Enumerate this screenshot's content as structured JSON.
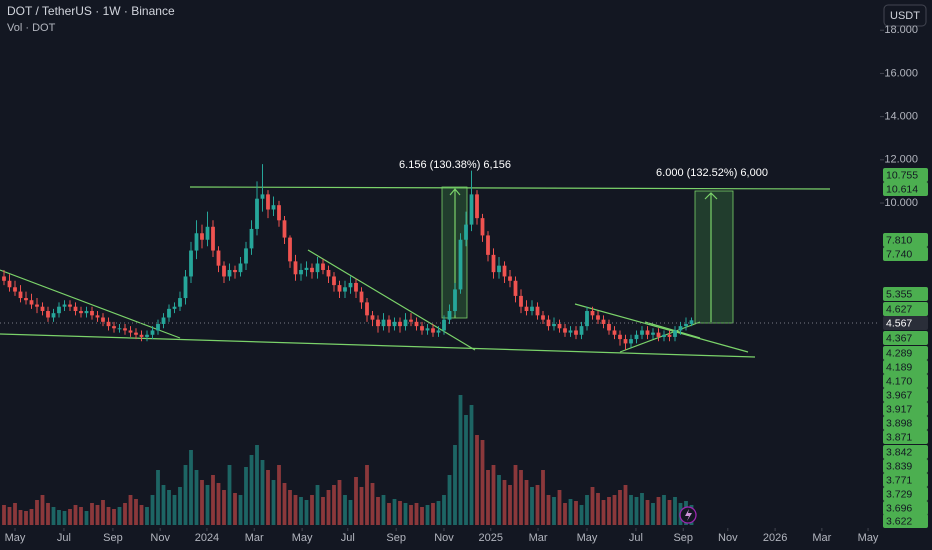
{
  "chart_data": {
    "type": "candlestick",
    "title": "DOT / TetherUS · 1W · Binance",
    "subtitle": "Vol · DOT",
    "currency_button": "USDT",
    "up_color": "#26a69a",
    "down_color": "#ef5350",
    "grid": false,
    "ylim": [
      -5,
      19.4
    ],
    "yticks": [
      {
        "value": 10,
        "label": "10.000"
      },
      {
        "value": 12,
        "label": "12.000"
      },
      {
        "value": 14,
        "label": "14.000"
      },
      {
        "value": 16,
        "label": "16.000"
      },
      {
        "value": 18,
        "label": "18.000"
      }
    ],
    "xticks": [
      {
        "value": 2.0,
        "label": "May"
      },
      {
        "value": 10.9,
        "label": "Jul"
      },
      {
        "value": 19.8,
        "label": "Sep"
      },
      {
        "value": 28.4,
        "label": "Nov"
      },
      {
        "value": 36.9,
        "label": "2024"
      },
      {
        "value": 45.5,
        "label": "Mar"
      },
      {
        "value": 54.2,
        "label": "May"
      },
      {
        "value": 62.5,
        "label": "Jul"
      },
      {
        "value": 71.3,
        "label": "Sep"
      },
      {
        "value": 80,
        "label": "Nov"
      },
      {
        "value": 88.5,
        "label": "2025"
      },
      {
        "value": 97.1,
        "label": "Mar"
      },
      {
        "value": 106,
        "label": "May"
      },
      {
        "value": 114.9,
        "label": "Jul"
      },
      {
        "value": 123.5,
        "label": "Sep"
      },
      {
        "value": 131.6,
        "label": "Nov"
      },
      {
        "value": 140.2,
        "label": "2026"
      },
      {
        "value": 148.7,
        "label": "Mar"
      },
      {
        "value": 157.1,
        "label": "May"
      }
    ],
    "open": [
      6.6,
      6.4,
      6.1,
      5.9,
      5.6,
      5.5,
      5.3,
      5.2,
      5.0,
      4.7,
      4.9,
      5.2,
      5.3,
      5.2,
      5.0,
      4.9,
      5.0,
      4.8,
      4.7,
      4.5,
      4.3,
      4.2,
      4.2,
      4.1,
      4.0,
      3.9,
      3.8,
      3.9,
      4.1,
      4.4,
      4.7,
      5.1,
      5.2,
      5.6,
      6.6,
      7.8,
      8.6,
      8.3,
      8.9,
      7.8,
      7.1,
      6.6,
      6.9,
      6.8,
      7.2,
      7.9,
      8.8,
      10.2,
      10.4,
      9.7,
      9.9,
      9.2,
      8.4,
      7.3,
      6.7,
      6.9,
      7.0,
      6.8,
      7.2,
      6.9,
      6.6,
      6.2,
      5.9,
      6.1,
      6.3,
      5.9,
      5.4,
      4.8,
      4.6,
      4.3,
      4.6,
      4.3,
      4.5,
      4.3,
      4.6,
      4.5,
      4.3,
      4.1,
      4.2,
      4.0,
      4.1,
      4.6,
      5.0,
      6.0,
      8.3,
      9.0,
      10.4,
      9.3,
      8.5,
      7.6,
      6.8,
      7.1,
      6.6,
      6.4,
      5.7,
      5.2,
      5.0,
      5.2,
      4.8,
      4.6,
      4.3,
      4.4,
      4.2,
      4.0,
      4.1,
      3.9,
      4.3,
      5.0,
      4.8,
      4.6,
      4.4,
      4.1,
      3.9,
      3.7,
      3.5,
      3.7,
      3.9,
      4.1,
      3.9,
      4.0,
      3.8,
      3.9,
      3.8,
      4.1,
      4.3,
      4.4
    ],
    "high": [
      6.9,
      6.7,
      6.4,
      6.2,
      5.9,
      5.8,
      5.6,
      5.4,
      5.2,
      5.1,
      5.4,
      5.5,
      5.5,
      5.4,
      5.2,
      5.2,
      5.2,
      5.0,
      4.9,
      4.7,
      4.5,
      4.4,
      4.4,
      4.3,
      4.2,
      4.1,
      4.1,
      4.3,
      4.6,
      4.9,
      5.3,
      5.4,
      5.9,
      6.9,
      8.2,
      9.2,
      9.0,
      9.6,
      9.2,
      8.0,
      7.3,
      7.2,
      7.1,
      7.5,
      8.2,
      9.2,
      11.0,
      11.8,
      10.6,
      10.3,
      10.1,
      9.4,
      8.5,
      7.6,
      7.2,
      7.3,
      7.2,
      7.5,
      7.4,
      7.1,
      6.8,
      6.4,
      6.4,
      6.6,
      6.5,
      6.1,
      5.6,
      5.0,
      4.8,
      4.9,
      4.8,
      4.7,
      4.7,
      4.9,
      4.9,
      4.7,
      4.5,
      4.4,
      4.4,
      4.3,
      4.8,
      5.3,
      6.3,
      8.6,
      9.6,
      11.5,
      10.6,
      9.5,
      8.7,
      7.9,
      7.5,
      7.3,
      6.9,
      6.6,
      6.0,
      5.5,
      5.5,
      5.4,
      5.0,
      4.8,
      4.7,
      4.6,
      4.4,
      4.3,
      4.3,
      4.5,
      5.2,
      5.2,
      5.0,
      4.8,
      4.6,
      4.3,
      4.1,
      3.9,
      3.9,
      4.1,
      4.3,
      4.3,
      4.2,
      4.2,
      4.1,
      4.1,
      4.3,
      4.5,
      4.7,
      4.7
    ],
    "low": [
      6.2,
      5.9,
      5.7,
      5.4,
      5.3,
      5.1,
      4.9,
      4.8,
      4.5,
      4.5,
      4.7,
      5.0,
      5.0,
      4.8,
      4.7,
      4.7,
      4.6,
      4.5,
      4.3,
      4.1,
      4.0,
      4.0,
      3.9,
      3.8,
      3.7,
      3.6,
      3.6,
      3.7,
      3.9,
      4.2,
      4.5,
      4.9,
      5.0,
      5.3,
      6.3,
      7.4,
      7.9,
      8.0,
      7.5,
      6.8,
      6.3,
      6.4,
      6.5,
      6.6,
      6.9,
      7.6,
      8.5,
      9.6,
      9.3,
      9.4,
      8.9,
      8.1,
      7.0,
      6.4,
      6.4,
      6.6,
      6.5,
      6.5,
      6.7,
      6.3,
      5.9,
      5.6,
      5.6,
      5.8,
      5.6,
      5.1,
      4.5,
      4.3,
      4.0,
      4.1,
      4.0,
      4.1,
      4.0,
      4.1,
      4.3,
      4.1,
      3.9,
      3.9,
      3.8,
      3.8,
      3.9,
      4.4,
      4.8,
      5.8,
      8.0,
      8.7,
      9.0,
      8.2,
      7.3,
      6.5,
      6.5,
      6.3,
      6.1,
      5.4,
      4.9,
      4.8,
      4.8,
      4.6,
      4.4,
      4.1,
      4.1,
      4.0,
      3.8,
      3.8,
      3.7,
      3.7,
      4.1,
      4.6,
      4.4,
      4.2,
      3.9,
      3.7,
      3.4,
      3.2,
      3.3,
      3.5,
      3.7,
      3.7,
      3.7,
      3.6,
      3.6,
      3.6,
      3.6,
      3.9,
      4.1,
      4.3
    ],
    "close": [
      6.4,
      6.1,
      5.9,
      5.6,
      5.5,
      5.3,
      5.2,
      5.0,
      4.7,
      4.9,
      5.2,
      5.3,
      5.2,
      5.0,
      4.9,
      5.0,
      4.8,
      4.7,
      4.5,
      4.3,
      4.2,
      4.2,
      4.1,
      4.0,
      3.9,
      3.8,
      3.9,
      4.1,
      4.4,
      4.7,
      5.1,
      5.2,
      5.6,
      6.6,
      7.8,
      8.6,
      8.3,
      8.9,
      7.8,
      7.1,
      6.6,
      6.9,
      6.8,
      7.2,
      7.9,
      8.8,
      10.2,
      10.4,
      9.7,
      9.9,
      9.2,
      8.4,
      7.3,
      6.7,
      6.9,
      7.0,
      6.8,
      7.2,
      6.9,
      6.6,
      6.2,
      5.9,
      6.1,
      6.3,
      5.9,
      5.4,
      4.8,
      4.6,
      4.3,
      4.6,
      4.3,
      4.5,
      4.3,
      4.6,
      4.5,
      4.3,
      4.1,
      4.2,
      4.0,
      4.1,
      4.6,
      5.0,
      6.0,
      8.3,
      9.0,
      10.4,
      9.3,
      8.5,
      7.6,
      6.8,
      7.1,
      6.6,
      6.4,
      5.7,
      5.2,
      5.0,
      5.2,
      4.8,
      4.6,
      4.3,
      4.4,
      4.2,
      4.0,
      4.1,
      3.9,
      4.3,
      5.0,
      4.8,
      4.6,
      4.4,
      4.1,
      3.9,
      3.7,
      3.5,
      3.7,
      3.9,
      4.1,
      3.9,
      4.0,
      3.8,
      3.9,
      3.8,
      4.1,
      4.3,
      4.4,
      4.57
    ],
    "volume": [
      20,
      18,
      22,
      15,
      14,
      16,
      25,
      30,
      22,
      18,
      15,
      14,
      16,
      20,
      18,
      14,
      22,
      20,
      25,
      18,
      16,
      18,
      22,
      30,
      26,
      20,
      18,
      30,
      55,
      40,
      35,
      30,
      38,
      60,
      75,
      55,
      45,
      40,
      50,
      42,
      35,
      60,
      32,
      30,
      58,
      70,
      80,
      65,
      55,
      45,
      60,
      42,
      35,
      30,
      28,
      25,
      30,
      40,
      28,
      35,
      40,
      45,
      30,
      25,
      48,
      38,
      60,
      42,
      28,
      30,
      22,
      26,
      24,
      22,
      20,
      22,
      18,
      20,
      22,
      24,
      30,
      50,
      80,
      130,
      110,
      120,
      90,
      85,
      55,
      60,
      50,
      45,
      40,
      60,
      55,
      45,
      38,
      40,
      55,
      30,
      28,
      35,
      22,
      26,
      24,
      20,
      30,
      38,
      32,
      25,
      28,
      30,
      35,
      40,
      30,
      28,
      32,
      25,
      22,
      28,
      30,
      25,
      28,
      22,
      24,
      20
    ],
    "annotations": [
      "6.156 (130.38%) 6,156",
      "6.000 (132.52%) 6,000"
    ],
    "price_tags": [
      {
        "value": 10.755,
        "label": "10.755"
      },
      {
        "value": 10.614,
        "label": "10.614"
      },
      {
        "value": 7.81,
        "label": "7.810"
      },
      {
        "value": 7.74,
        "label": "7.740"
      },
      {
        "value": 5.355,
        "label": "5.355"
      },
      {
        "value": 4.627,
        "label": "4.627"
      },
      {
        "value": 4.567,
        "label": "4.567"
      },
      {
        "value": 4.367,
        "label": "4.367"
      },
      {
        "value": 4.289,
        "label": "4.289"
      },
      {
        "value": 4.189,
        "label": "4.189"
      },
      {
        "value": 4.17,
        "label": "4.170"
      },
      {
        "value": 3.967,
        "label": "3.967"
      },
      {
        "value": 3.917,
        "label": "3.917"
      },
      {
        "value": 3.898,
        "label": "3.898"
      },
      {
        "value": 3.871,
        "label": "3.871"
      },
      {
        "value": 3.842,
        "label": "3.842"
      },
      {
        "value": 3.839,
        "label": "3.839"
      },
      {
        "value": 3.771,
        "label": "3.771"
      },
      {
        "value": 3.729,
        "label": "3.729"
      },
      {
        "value": 3.696,
        "label": "3.696"
      },
      {
        "value": 3.622,
        "label": "3.622"
      }
    ]
  }
}
